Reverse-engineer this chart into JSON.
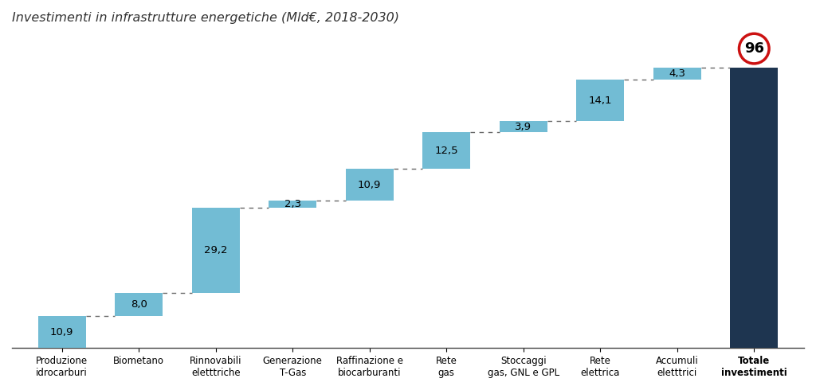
{
  "title": "Investimenti in infrastrutture energetiche (Mld€, 2018-2030)",
  "categories": [
    "Produzione\nidrocarburi",
    "Biometano",
    "Rinnovabili\neletttriche",
    "Generazione\nT-Gas",
    "Raffinazione e\nbiocarburanti",
    "Rete\ngas",
    "Stoccaggi\ngas, GNL e GPL",
    "Rete\nelettrica",
    "Accumuli\neletttrici",
    "Totale\ninvestimenti"
  ],
  "values": [
    10.9,
    8.0,
    29.2,
    2.3,
    10.9,
    12.5,
    3.9,
    14.1,
    4.3,
    96
  ],
  "labels": [
    "10,9",
    "8,0",
    "29,2",
    "2,3",
    "10,9",
    "12,5",
    "3,9",
    "14,1",
    "4,3",
    "96"
  ],
  "bar_color_light": "#72bcd4",
  "bar_color_dark": "#1e3550",
  "background_color": "#ffffff",
  "title_color": "#333333",
  "circle_color": "#cc1111",
  "dashed_line_color": "#666666",
  "ylim": [
    0,
    108
  ]
}
